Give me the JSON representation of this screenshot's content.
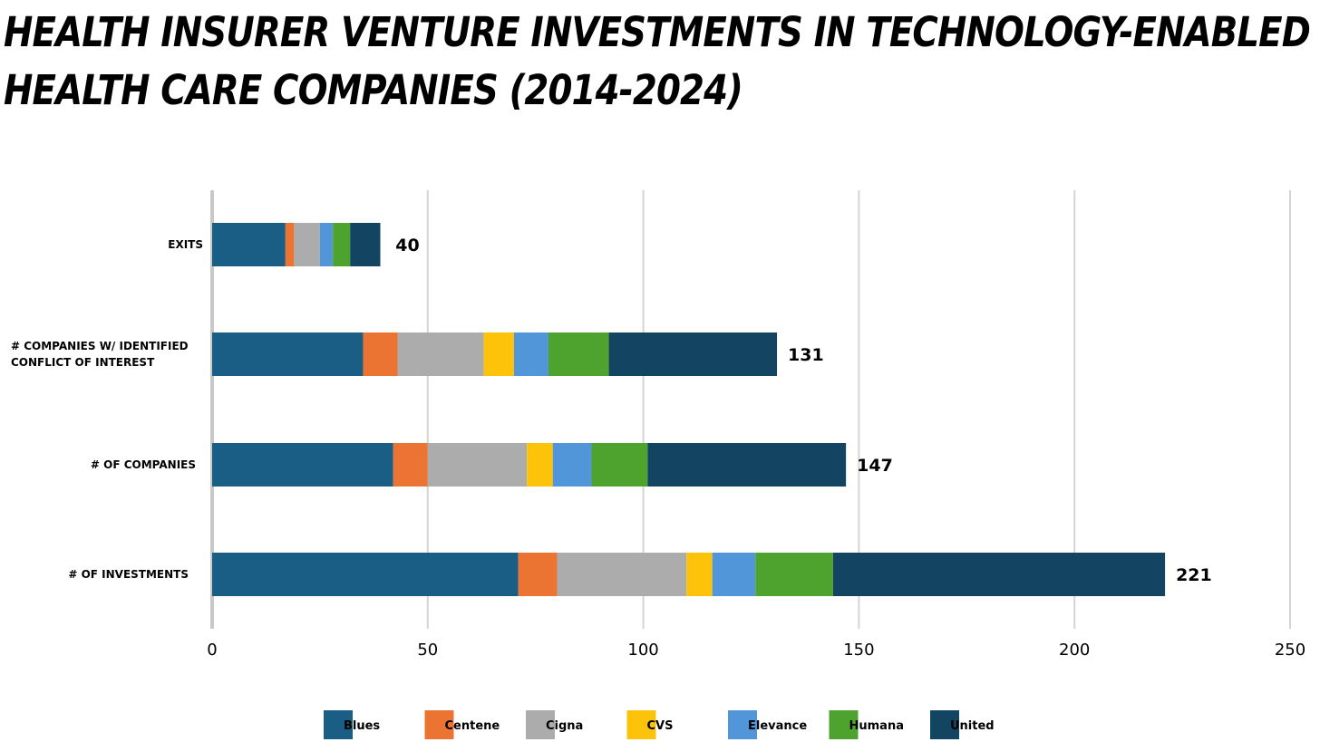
{
  "title_lines": [
    "HEALTH INSURER VENTURE INVESTMENTS IN TECHNOLOGY-ENABLED",
    "HEALTH CARE COMPANIES (2014-2024)"
  ],
  "chart_data": {
    "type": "bar",
    "orientation": "horizontal",
    "stacked": true,
    "title": "HEALTH INSURER VENTURE INVESTMENTS IN TECHNOLOGY-ENABLED HEALTH CARE COMPANIES (2014-2024)",
    "categories": [
      [
        "EXITS"
      ],
      [
        "# COMPANIES W/ IDENTIFIED",
        "CONFLICT OF INTEREST"
      ],
      [
        "# OF COMPANIES"
      ],
      [
        "# OF INVESTMENTS"
      ]
    ],
    "series": [
      {
        "name": "Blues",
        "color": "#1a5e86",
        "values": [
          17,
          35,
          42,
          71
        ]
      },
      {
        "name": "Centene",
        "color": "#ec7433",
        "values": [
          2,
          8,
          8,
          9
        ]
      },
      {
        "name": "Cigna",
        "color": "#acacac",
        "values": [
          6,
          20,
          23,
          30
        ]
      },
      {
        "name": "CVS",
        "color": "#fdc30a",
        "values": [
          0,
          7,
          6,
          6
        ]
      },
      {
        "name": "Elevance",
        "color": "#5196d9",
        "values": [
          3,
          8,
          9,
          10
        ]
      },
      {
        "name": "Humana",
        "color": "#4ea22e",
        "values": [
          4,
          14,
          13,
          18
        ]
      },
      {
        "name": "United",
        "color": "#134562",
        "values": [
          7,
          39,
          46,
          77
        ]
      }
    ],
    "totals": [
      40,
      131,
      147,
      221
    ],
    "xlim": [
      0,
      250
    ],
    "xticks": [
      0,
      50,
      100,
      150,
      200,
      250
    ],
    "grid": true,
    "legend_position": "bottom"
  }
}
